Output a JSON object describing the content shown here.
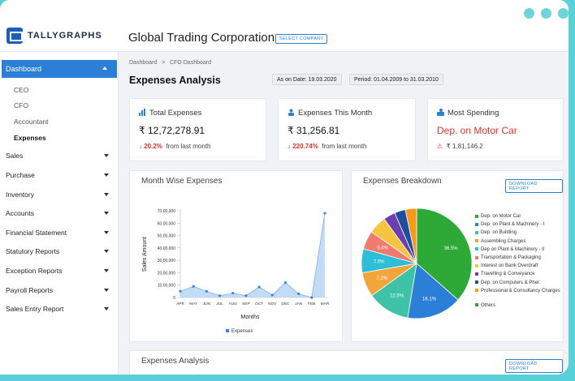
{
  "app": {
    "brand": "TALLYGRAPHS",
    "company": "Global Trading Corporation",
    "select_company": "SELECT COMPANY"
  },
  "sidebar": {
    "active": "Dashboard",
    "sub_items": [
      "CEO",
      "CFO",
      "Accountant",
      "Expenses"
    ],
    "items": [
      "Sales",
      "Purchase",
      "Inventory",
      "Accounts",
      "Financial Statement",
      "Statutory Reports",
      "Exception Reports",
      "Payroll Reports",
      "Sales Entry Report"
    ]
  },
  "breadcrumb": {
    "home": "Dashboard",
    "sep": ">",
    "current": "CFO Dashboard"
  },
  "page": {
    "title": "Expenses Analysis",
    "as_on": "As on Date: 19.03.2020",
    "period": "Period: 01.04.2009 to 31.03.2010"
  },
  "stats": {
    "total": {
      "label": "Total Expenses",
      "value": "₹ 12,72,278.91",
      "change": "20.2%",
      "change_text": "from last month"
    },
    "month": {
      "label": "Expenses This Month",
      "value": "₹ 31,256.81",
      "change": "220.74%",
      "change_text": "from last month"
    },
    "most": {
      "label": "Most Spending",
      "value": "Dep. on Motor Car",
      "amount": "₹ 1,81,146.2"
    }
  },
  "line_panel": {
    "title": "Month Wise Expenses",
    "legend": "Expenses",
    "xlabel": "Months",
    "ylabel": "Sales Amount"
  },
  "pie_panel": {
    "title": "Expenses Breakdown",
    "download": "DOWNLOAD REPORT"
  },
  "bottom_panel": {
    "title": "Expenses Analysis",
    "download": "DOWNLOAD REPORT"
  },
  "colors": {
    "accent": "#2b7fd6",
    "red": "#e2342c",
    "line": "#6aa8e8"
  },
  "chart_data": [
    {
      "type": "area",
      "title": "Month Wise Expenses",
      "xlabel": "Months",
      "ylabel": "Sales Amount",
      "categories": [
        "APR",
        "MAY",
        "JUN",
        "JUL",
        "AUG",
        "SEP",
        "OCT",
        "NOV",
        "DEC",
        "JAN",
        "FEB",
        "MAR"
      ],
      "series": [
        {
          "name": "Expenses",
          "values": [
            5000000,
            9000000,
            5000000,
            1500000,
            3500000,
            1500000,
            8500000,
            2000000,
            12000000,
            3000000,
            0,
            68000000
          ]
        }
      ],
      "ylim": [
        0,
        70000000
      ],
      "yticks": [
        "0",
        "10,00,000",
        "20,00,000",
        "30,00,000",
        "40,00,000",
        "50,00,000",
        "60,00,000",
        "70,00,000"
      ],
      "legend": "bottom"
    },
    {
      "type": "pie",
      "title": "Expenses Breakdown",
      "slices": [
        {
          "label": "Dep. on Motor Car",
          "value": 36.5,
          "color": "#2ea836",
          "pct_label": "36.5%"
        },
        {
          "label": "Dep. on Plant & Machinery - I",
          "value": 16.1,
          "color": "#2b7fd6",
          "pct_label": "16.1%"
        },
        {
          "label": "Dep. on  Building",
          "value": 12.5,
          "color": "#3ec3a8",
          "pct_label": "12.5%"
        },
        {
          "label": "Assembling Charges",
          "value": 7.2,
          "color": "#f0a63a",
          "pct_label": "7.2%"
        },
        {
          "label": "Dep on Plant & Machinery - II",
          "value": 7.0,
          "color": "#2ebed6",
          "pct_label": "7.0%"
        },
        {
          "label": "Transportation & Packaging",
          "value": 5.4,
          "color": "#f07a6e",
          "pct_label": "5.4%"
        },
        {
          "label": "Interest on Bank Overdraft",
          "value": 5.3,
          "color": "#f4c542",
          "pct_label": ""
        },
        {
          "label": "Travelling & Conveyance",
          "value": 3.5,
          "color": "#6a3fb0",
          "pct_label": ""
        },
        {
          "label": "Dep. on Computers & Pher.",
          "value": 3.2,
          "color": "#1f4f9c",
          "pct_label": ""
        },
        {
          "label": "Professional & Consultancy Charges",
          "value": 3.3,
          "color": "#f59a1c",
          "pct_label": ""
        },
        {
          "label": "Others",
          "value": 0,
          "color": "#3a9e3a",
          "pct_label": ""
        }
      ],
      "legend": "right"
    }
  ]
}
